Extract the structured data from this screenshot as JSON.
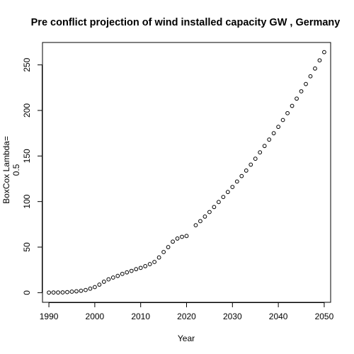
{
  "chart_data": {
    "type": "scatter",
    "title": "Pre conflict projection of wind installed capacity GW , Germany",
    "xlabel": "Year",
    "ylabel_lines": [
      "BoxCox Lambda=",
      "0.5"
    ],
    "xlim": [
      1988.6,
      2051.4
    ],
    "ylim": [
      -10.6,
      274.6
    ],
    "x_ticks": [
      1990,
      2000,
      2010,
      2020,
      2030,
      2040,
      2050
    ],
    "y_ticks": [
      0,
      50,
      100,
      150,
      200,
      250
    ],
    "grid": false,
    "series": [
      {
        "marker": "open-circle",
        "x": [
          1990,
          1991,
          1992,
          1993,
          1994,
          1995,
          1996,
          1997,
          1998,
          1999,
          2000,
          2001,
          2002,
          2003,
          2004,
          2005,
          2006,
          2007,
          2008,
          2009,
          2010,
          2011,
          2012,
          2013,
          2014,
          2015,
          2016,
          2017,
          2018,
          2019,
          2020,
          2021,
          2022,
          2023,
          2024,
          2025,
          2026,
          2027,
          2028,
          2029,
          2030,
          2031,
          2032,
          2033,
          2034,
          2035,
          2036,
          2037,
          2038,
          2039,
          2040,
          2041,
          2042,
          2043,
          2044,
          2045,
          2046,
          2047,
          2048,
          2049,
          2050
        ],
        "y": [
          0.1,
          0.2,
          0.2,
          0.3,
          0.6,
          1.1,
          1.5,
          2.1,
          2.9,
          4.4,
          6.1,
          8.8,
          12.0,
          14.6,
          16.6,
          18.4,
          20.6,
          22.3,
          23.9,
          25.8,
          27.2,
          29.1,
          31.3,
          33.7,
          38.6,
          44.6,
          50.0,
          56.0,
          59.4,
          61.3,
          62.2,
          null,
          74.0,
          78.5,
          83.5,
          88.5,
          94.0,
          99.5,
          105.0,
          110.5,
          116.0,
          122.0,
          128.0,
          134.0,
          140.5,
          147.0,
          154.0,
          161.0,
          168.0,
          175.0,
          182.0,
          189.5,
          197.0,
          205.0,
          213.0,
          221.0,
          229.0,
          237.5,
          246.0,
          255.0,
          264.0
        ]
      }
    ]
  }
}
